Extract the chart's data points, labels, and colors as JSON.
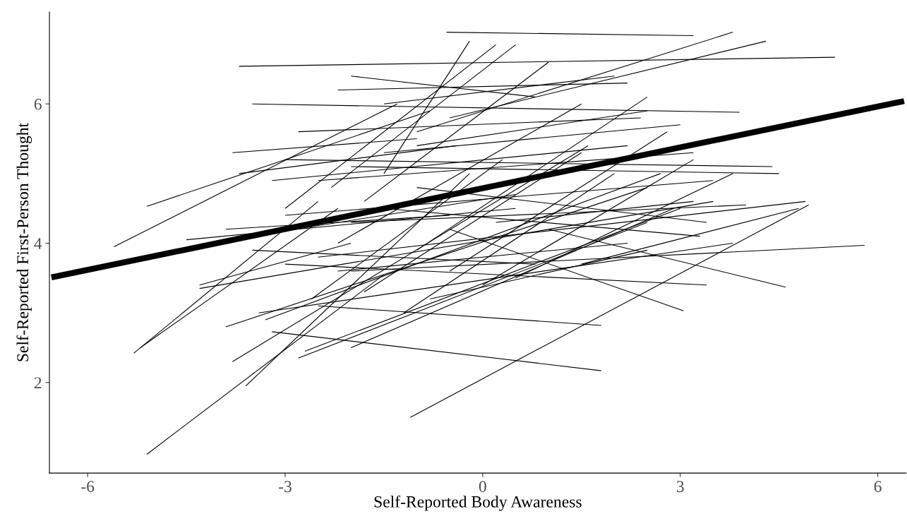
{
  "chart_data": {
    "type": "line",
    "xlabel": "Self-Reported Body Awareness",
    "ylabel": "Self-Reported First-Person Thought",
    "xlim": [
      -6.58,
      6.43
    ],
    "ylim": [
      0.7,
      7.32
    ],
    "xticks": [
      -6,
      -3,
      0,
      3,
      6
    ],
    "yticks": [
      2,
      4,
      6
    ],
    "grid": false,
    "marker": "none",
    "line_style": "solid",
    "series": [
      {
        "color": "#000000",
        "x": [
          -6.55,
          6.4
        ],
        "values": [
          3.51,
          6.04
        ]
      },
      {
        "color": "#000000",
        "x": [
          -5.1,
          -1.5
        ],
        "values": [
          0.97,
          3.55
        ]
      },
      {
        "color": "#000000",
        "x": [
          -1.1,
          4.95
        ],
        "values": [
          1.5,
          4.55
        ]
      },
      {
        "color": "#000000",
        "x": [
          -3.2,
          1.8
        ],
        "values": [
          2.73,
          2.17
        ]
      },
      {
        "color": "#000000",
        "x": [
          -2.5,
          1.8
        ],
        "values": [
          3.1,
          2.82
        ]
      },
      {
        "color": "#000000",
        "x": [
          -5.6,
          -1.3
        ],
        "values": [
          3.95,
          6.0
        ]
      },
      {
        "color": "#000000",
        "x": [
          -5.1,
          -0.8
        ],
        "values": [
          4.53,
          5.9
        ]
      },
      {
        "color": "#000000",
        "x": [
          -5.3,
          -2.5
        ],
        "values": [
          2.42,
          4.6
        ]
      },
      {
        "color": "#000000",
        "x": [
          -5.2,
          -2.2
        ],
        "values": [
          2.5,
          4.5
        ]
      },
      {
        "color": "#000000",
        "x": [
          -3.7,
          5.35
        ],
        "values": [
          6.54,
          6.67
        ]
      },
      {
        "color": "#000000",
        "x": [
          -0.55,
          3.2
        ],
        "values": [
          7.03,
          6.98
        ]
      },
      {
        "color": "#000000",
        "x": [
          -1.0,
          3.8
        ],
        "values": [
          5.6,
          7.03
        ]
      },
      {
        "color": "#000000",
        "x": [
          -0.5,
          4.3
        ],
        "values": [
          5.8,
          6.9
        ]
      },
      {
        "color": "#000000",
        "x": [
          -2.0,
          0.8
        ],
        "values": [
          6.4,
          6.1
        ]
      },
      {
        "color": "#000000",
        "x": [
          -2.2,
          2.2
        ],
        "values": [
          6.2,
          6.3
        ]
      },
      {
        "color": "#000000",
        "x": [
          -1.5,
          -0.2
        ],
        "values": [
          5.0,
          6.9
        ]
      },
      {
        "color": "#000000",
        "x": [
          -2.3,
          0.5
        ],
        "values": [
          4.8,
          6.85
        ]
      },
      {
        "color": "#000000",
        "x": [
          -3.0,
          0.2
        ],
        "values": [
          4.5,
          6.85
        ]
      },
      {
        "color": "#000000",
        "x": [
          -1.8,
          1.0
        ],
        "values": [
          4.6,
          6.6
        ]
      },
      {
        "color": "#000000",
        "x": [
          -3.5,
          3.9
        ],
        "values": [
          6.0,
          5.88
        ]
      },
      {
        "color": "#000000",
        "x": [
          -3.0,
          4.4
        ],
        "values": [
          5.2,
          5.1
        ]
      },
      {
        "color": "#000000",
        "x": [
          -3.8,
          -1.0
        ],
        "values": [
          5.3,
          5.5
        ]
      },
      {
        "color": "#000000",
        "x": [
          -3.7,
          -0.4
        ],
        "values": [
          5.0,
          5.4
        ]
      },
      {
        "color": "#000000",
        "x": [
          -4.2,
          0.5
        ],
        "values": [
          4.0,
          4.7
        ]
      },
      {
        "color": "#000000",
        "x": [
          -3.8,
          1.6
        ],
        "values": [
          2.3,
          5.4
        ]
      },
      {
        "color": "#000000",
        "x": [
          -3.6,
          -0.2
        ],
        "values": [
          1.95,
          5.0
        ]
      },
      {
        "color": "#000000",
        "x": [
          -3.3,
          2.7
        ],
        "values": [
          2.9,
          5.0
        ]
      },
      {
        "color": "#000000",
        "x": [
          -3.9,
          2.5
        ],
        "values": [
          2.8,
          4.8
        ]
      },
      {
        "color": "#000000",
        "x": [
          -4.3,
          3.5
        ],
        "values": [
          3.35,
          4.6
        ]
      },
      {
        "color": "#000000",
        "x": [
          -3.4,
          3.8
        ],
        "values": [
          3.0,
          4.0
        ]
      },
      {
        "color": "#000000",
        "x": [
          -2.0,
          5.8
        ],
        "values": [
          3.6,
          3.97
        ]
      },
      {
        "color": "#000000",
        "x": [
          1.0,
          4.6
        ],
        "values": [
          4.2,
          3.37
        ]
      },
      {
        "color": "#000000",
        "x": [
          -0.5,
          3.05
        ],
        "values": [
          4.2,
          3.03
        ]
      },
      {
        "color": "#000000",
        "x": [
          -2.0,
          2.9
        ],
        "values": [
          2.5,
          4.5
        ]
      },
      {
        "color": "#000000",
        "x": [
          -2.8,
          2.5
        ],
        "values": [
          2.35,
          4.3
        ]
      },
      {
        "color": "#000000",
        "x": [
          -2.7,
          3.0
        ],
        "values": [
          2.45,
          4.5
        ]
      },
      {
        "color": "#000000",
        "x": [
          -3.0,
          3.4
        ],
        "values": [
          3.7,
          3.4
        ]
      },
      {
        "color": "#000000",
        "x": [
          -2.5,
          4.9
        ],
        "values": [
          3.8,
          4.6
        ]
      },
      {
        "color": "#000000",
        "x": [
          -2.0,
          4.0
        ],
        "values": [
          4.3,
          4.55
        ]
      },
      {
        "color": "#000000",
        "x": [
          -1.5,
          3.3
        ],
        "values": [
          4.5,
          4.1
        ]
      },
      {
        "color": "#000000",
        "x": [
          -3.0,
          3.5
        ],
        "values": [
          4.4,
          4.9
        ]
      },
      {
        "color": "#000000",
        "x": [
          -2.5,
          3.2
        ],
        "values": [
          4.9,
          5.3
        ]
      },
      {
        "color": "#000000",
        "x": [
          -2.0,
          4.5
        ],
        "values": [
          5.1,
          5.0
        ]
      },
      {
        "color": "#000000",
        "x": [
          -1.5,
          3.0
        ],
        "values": [
          5.3,
          5.7
        ]
      },
      {
        "color": "#000000",
        "x": [
          -1.0,
          2.5
        ],
        "values": [
          5.4,
          5.9
        ]
      },
      {
        "color": "#000000",
        "x": [
          -2.2,
          1.5
        ],
        "values": [
          4.0,
          6.0
        ]
      },
      {
        "color": "#000000",
        "x": [
          -1.0,
          2.5
        ],
        "values": [
          3.9,
          6.1
        ]
      },
      {
        "color": "#000000",
        "x": [
          -0.5,
          2.8
        ],
        "values": [
          3.6,
          5.6
        ]
      },
      {
        "color": "#000000",
        "x": [
          -1.8,
          1.5
        ],
        "values": [
          3.3,
          5.3
        ]
      },
      {
        "color": "#000000",
        "x": [
          -2.6,
          0.3
        ],
        "values": [
          3.2,
          5.2
        ]
      },
      {
        "color": "#000000",
        "x": [
          -1.2,
          2.0
        ],
        "values": [
          3.0,
          5.0
        ]
      },
      {
        "color": "#000000",
        "x": [
          0.0,
          3.2
        ],
        "values": [
          3.4,
          5.2
        ]
      },
      {
        "color": "#000000",
        "x": [
          0.5,
          3.8
        ],
        "values": [
          3.5,
          5.0
        ]
      },
      {
        "color": "#000000",
        "x": [
          -0.8,
          2.5
        ],
        "values": [
          3.2,
          3.9
        ]
      },
      {
        "color": "#000000",
        "x": [
          -2.2,
          2.2
        ],
        "values": [
          3.6,
          4.0
        ]
      },
      {
        "color": "#000000",
        "x": [
          -3.5,
          0.8
        ],
        "values": [
          3.9,
          3.7
        ]
      },
      {
        "color": "#000000",
        "x": [
          -3.9,
          -0.5
        ],
        "values": [
          4.2,
          4.4
        ]
      },
      {
        "color": "#000000",
        "x": [
          -1.5,
          2.0
        ],
        "values": [
          6.0,
          6.4
        ]
      },
      {
        "color": "#000000",
        "x": [
          -2.8,
          2.4
        ],
        "values": [
          5.6,
          5.8
        ]
      },
      {
        "color": "#000000",
        "x": [
          -3.2,
          2.2
        ],
        "values": [
          4.9,
          5.4
        ]
      },
      {
        "color": "#000000",
        "x": [
          0.2,
          3.2
        ],
        "values": [
          4.3,
          4.6
        ]
      },
      {
        "color": "#000000",
        "x": [
          1.5,
          4.8
        ],
        "values": [
          3.7,
          4.5
        ]
      },
      {
        "color": "#000000",
        "x": [
          -1.0,
          3.4
        ],
        "values": [
          4.8,
          4.3
        ]
      },
      {
        "color": "#000000",
        "x": [
          -4.5,
          0.5
        ],
        "values": [
          4.05,
          4.5
        ]
      },
      {
        "color": "#000000",
        "x": [
          -4.3,
          -2.0
        ],
        "values": [
          3.4,
          4.0
        ]
      }
    ]
  }
}
